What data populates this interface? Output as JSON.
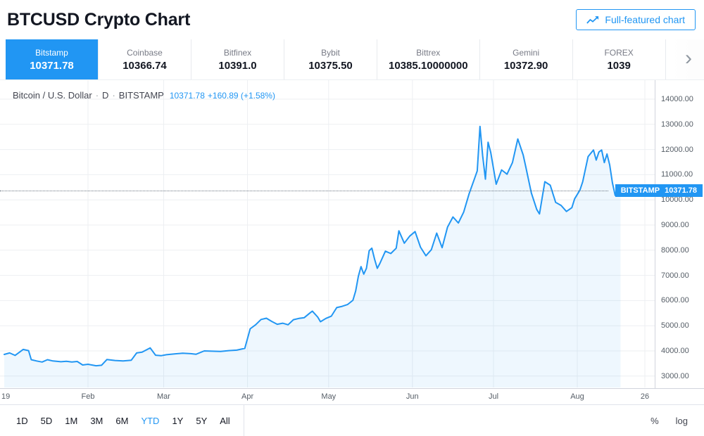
{
  "header": {
    "title": "BTCUSD Crypto Chart",
    "button_label": "Full-featured chart"
  },
  "exchanges": [
    {
      "name": "Bitstamp",
      "price": "10371.78",
      "active": true
    },
    {
      "name": "Coinbase",
      "price": "10366.74",
      "active": false
    },
    {
      "name": "Bitfinex",
      "price": "10391.0",
      "active": false
    },
    {
      "name": "Bybit",
      "price": "10375.50",
      "active": false
    },
    {
      "name": "Bittrex",
      "price": "10385.10000000",
      "active": false
    },
    {
      "name": "Gemini",
      "price": "10372.90",
      "active": false
    },
    {
      "name": "FOREX",
      "price": "1039",
      "active": false
    }
  ],
  "tabs_arrow": "›",
  "legend": {
    "symbol": "Bitcoin / U.S. Dollar",
    "sep": "·",
    "interval": "D",
    "exchange": "BITSTAMP",
    "price": "10371.78",
    "change": "+160.89 (+1.58%)"
  },
  "price_label": {
    "exchange": "BITSTAMP",
    "price": "10371.78"
  },
  "toolbar": {
    "ranges": [
      {
        "label": "1D",
        "active": false
      },
      {
        "label": "5D",
        "active": false
      },
      {
        "label": "1M",
        "active": false
      },
      {
        "label": "3M",
        "active": false
      },
      {
        "label": "6M",
        "active": false
      },
      {
        "label": "YTD",
        "active": true
      },
      {
        "label": "1Y",
        "active": false
      },
      {
        "label": "5Y",
        "active": false
      },
      {
        "label": "All",
        "active": false
      }
    ],
    "scales": [
      "%",
      "log"
    ]
  },
  "chart_data": {
    "type": "area",
    "title": "Bitcoin / U.S. Dollar · D · BITSTAMP",
    "exchange": "BITSTAMP",
    "interval": "D",
    "last_price": 10371.78,
    "change": "+160.89",
    "change_percent": "+1.58%",
    "line_color": "#2196f3",
    "fill_color": "rgba(33,150,243,0.08)",
    "y_ticks": [
      14000,
      13000,
      12000,
      11000,
      10000,
      9000,
      8000,
      7000,
      6000,
      5000,
      4000,
      3000
    ],
    "ylim": [
      2550,
      14750
    ],
    "x_ticks": [
      {
        "label": "19",
        "day": 0
      },
      {
        "label": "Feb",
        "day": 31
      },
      {
        "label": "Mar",
        "day": 59
      },
      {
        "label": "Apr",
        "day": 90
      },
      {
        "label": "May",
        "day": 120
      },
      {
        "label": "Jun",
        "day": 151
      },
      {
        "label": "Jul",
        "day": 181
      },
      {
        "label": "Aug",
        "day": 212
      },
      {
        "label": "26",
        "day": 237
      }
    ],
    "points": [
      [
        0,
        3860
      ],
      [
        2,
        3920
      ],
      [
        4,
        3820
      ],
      [
        7,
        4060
      ],
      [
        9,
        4010
      ],
      [
        10,
        3650
      ],
      [
        12,
        3600
      ],
      [
        14,
        3560
      ],
      [
        16,
        3650
      ],
      [
        18,
        3600
      ],
      [
        21,
        3570
      ],
      [
        23,
        3590
      ],
      [
        25,
        3560
      ],
      [
        27,
        3580
      ],
      [
        29,
        3440
      ],
      [
        31,
        3470
      ],
      [
        34,
        3410
      ],
      [
        36,
        3430
      ],
      [
        38,
        3660
      ],
      [
        41,
        3620
      ],
      [
        44,
        3600
      ],
      [
        47,
        3630
      ],
      [
        49,
        3920
      ],
      [
        51,
        3950
      ],
      [
        54,
        4120
      ],
      [
        56,
        3830
      ],
      [
        58,
        3810
      ],
      [
        60,
        3850
      ],
      [
        63,
        3880
      ],
      [
        66,
        3910
      ],
      [
        69,
        3890
      ],
      [
        71,
        3870
      ],
      [
        74,
        4000
      ],
      [
        77,
        3990
      ],
      [
        80,
        3980
      ],
      [
        83,
        4010
      ],
      [
        86,
        4030
      ],
      [
        89,
        4100
      ],
      [
        91,
        4880
      ],
      [
        93,
        5040
      ],
      [
        95,
        5250
      ],
      [
        97,
        5300
      ],
      [
        99,
        5170
      ],
      [
        101,
        5060
      ],
      [
        103,
        5100
      ],
      [
        105,
        5040
      ],
      [
        107,
        5240
      ],
      [
        109,
        5290
      ],
      [
        111,
        5320
      ],
      [
        113,
        5500
      ],
      [
        114,
        5580
      ],
      [
        116,
        5340
      ],
      [
        117,
        5160
      ],
      [
        119,
        5290
      ],
      [
        121,
        5380
      ],
      [
        123,
        5720
      ],
      [
        125,
        5770
      ],
      [
        127,
        5840
      ],
      [
        129,
        6010
      ],
      [
        130,
        6380
      ],
      [
        131,
        6960
      ],
      [
        132,
        7350
      ],
      [
        133,
        7050
      ],
      [
        134,
        7280
      ],
      [
        135,
        7980
      ],
      [
        136,
        8080
      ],
      [
        137,
        7650
      ],
      [
        138,
        7280
      ],
      [
        139,
        7480
      ],
      [
        141,
        7960
      ],
      [
        143,
        7870
      ],
      [
        145,
        8080
      ],
      [
        146,
        8770
      ],
      [
        148,
        8280
      ],
      [
        150,
        8560
      ],
      [
        152,
        8740
      ],
      [
        154,
        8120
      ],
      [
        156,
        7780
      ],
      [
        158,
        8020
      ],
      [
        160,
        8680
      ],
      [
        162,
        8100
      ],
      [
        164,
        8920
      ],
      [
        166,
        9320
      ],
      [
        168,
        9080
      ],
      [
        170,
        9520
      ],
      [
        172,
        10250
      ],
      [
        174,
        10850
      ],
      [
        175,
        11150
      ],
      [
        176,
        12920
      ],
      [
        177,
        11750
      ],
      [
        178,
        10820
      ],
      [
        179,
        12290
      ],
      [
        180,
        11880
      ],
      [
        182,
        10620
      ],
      [
        184,
        11190
      ],
      [
        186,
        11020
      ],
      [
        188,
        11480
      ],
      [
        190,
        12420
      ],
      [
        192,
        11780
      ],
      [
        193,
        11280
      ],
      [
        195,
        10280
      ],
      [
        197,
        9620
      ],
      [
        198,
        9440
      ],
      [
        200,
        10720
      ],
      [
        202,
        10580
      ],
      [
        204,
        9900
      ],
      [
        206,
        9780
      ],
      [
        208,
        9540
      ],
      [
        210,
        9690
      ],
      [
        211,
        10040
      ],
      [
        213,
        10390
      ],
      [
        214,
        10720
      ],
      [
        216,
        11720
      ],
      [
        218,
        11980
      ],
      [
        219,
        11580
      ],
      [
        220,
        11900
      ],
      [
        221,
        11980
      ],
      [
        222,
        11480
      ],
      [
        223,
        11820
      ],
      [
        224,
        11380
      ],
      [
        225,
        10680
      ],
      [
        226,
        10180
      ],
      [
        227,
        10520
      ],
      [
        228,
        10371.78
      ]
    ]
  }
}
